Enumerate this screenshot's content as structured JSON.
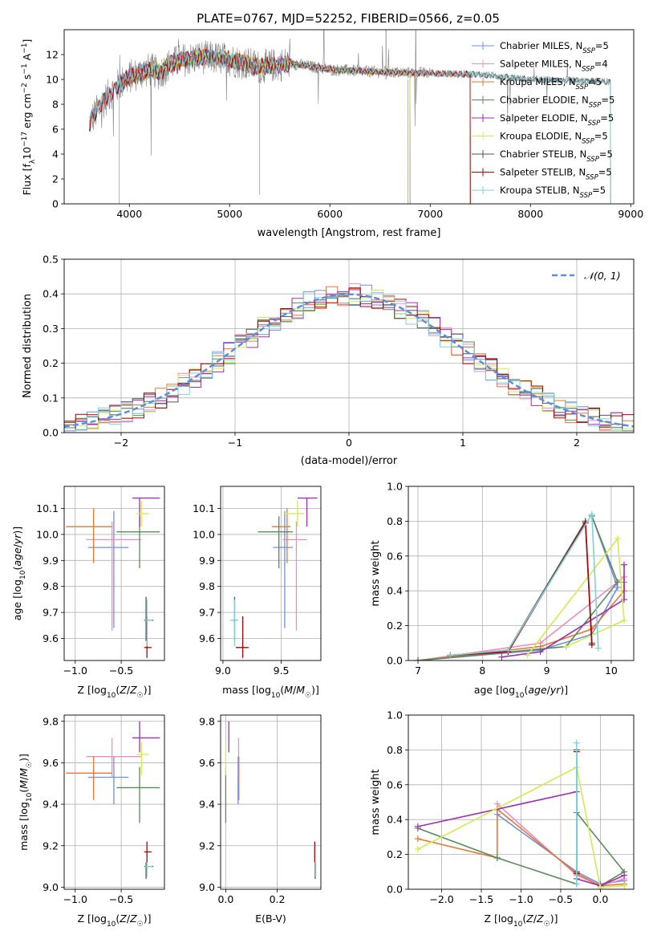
{
  "figure_title": "PLATE=0767, MJD=52252, FIBERID=0566, z=0.05",
  "colors": {
    "Chabrier MILES": "#6f8fdf",
    "Salpeter MILES": "#f08cc0",
    "Kroupa MILES": "#e07a30",
    "Chabrier ELODIE": "#5a8a5a",
    "Salpeter ELODIE": "#9b30b0",
    "Kroupa ELODIE": "#d0ec50",
    "Chabrier STELIB": "#555555",
    "Salpeter STELIB": "#b00000",
    "Kroupa STELIB": "#80d0d8",
    "data": "#808080",
    "normal": "#5b8fde"
  },
  "chart_data": [
    {
      "id": "spectrum",
      "type": "line",
      "title": "PLATE=0767, MJD=52252, FIBERID=0566, z=0.05",
      "xlabel": "wavelength [Angstrom, rest frame]",
      "ylabel": "Flux [f_λ10^-17 erg cm^-2 s^-1 A^-1]",
      "xlim": [
        3350,
        9030
      ],
      "ylim": [
        0,
        14
      ],
      "xticks": [
        4000,
        5000,
        6000,
        7000,
        8000,
        9000
      ],
      "yticks": [
        0,
        2,
        4,
        6,
        8,
        10,
        12
      ],
      "legend_position": "right",
      "legend": [
        {
          "name": "Chabrier MILES",
          "nssp": "5"
        },
        {
          "name": "Salpeter MILES",
          "nssp": "4"
        },
        {
          "name": "Kroupa MILES",
          "nssp": "5"
        },
        {
          "name": "Chabrier ELODIE",
          "nssp": "5"
        },
        {
          "name": "Salpeter ELODIE",
          "nssp": "5"
        },
        {
          "name": "Kroupa ELODIE",
          "nssp": "5"
        },
        {
          "name": "Chabrier STELIB",
          "nssp": "5"
        },
        {
          "name": "Salpeter STELIB",
          "nssp": "5"
        },
        {
          "name": "Kroupa STELIB",
          "nssp": "5"
        }
      ],
      "continuum": {
        "x": [
          3600,
          3700,
          3800,
          3900,
          4000,
          4100,
          4200,
          4300,
          4400,
          4500,
          4700,
          5000,
          5300,
          5600,
          6000,
          6500,
          7000,
          7500,
          8000,
          8500,
          8800
        ],
        "y": [
          6.5,
          7.8,
          8.8,
          9.6,
          10.2,
          10.5,
          10.8,
          10.5,
          11.2,
          11.5,
          11.8,
          11.6,
          11.0,
          11.3,
          10.8,
          10.6,
          10.5,
          10.4,
          10.0,
          9.9,
          9.8
        ]
      },
      "model_ranges": {
        "Chabrier MILES": [
          3600,
          7400
        ],
        "Salpeter MILES": [
          3600,
          7400
        ],
        "Kroupa MILES": [
          3600,
          7400
        ],
        "Chabrier ELODIE": [
          3900,
          6800
        ],
        "Salpeter ELODIE": [
          3900,
          6800
        ],
        "Kroupa ELODIE": [
          3900,
          6800
        ],
        "Chabrier STELIB": [
          3600,
          8800
        ],
        "Salpeter STELIB": [
          3600,
          7400
        ],
        "Kroupa STELIB": [
          3600,
          8800
        ]
      }
    },
    {
      "id": "residuals",
      "type": "histogram",
      "xlabel": "(data-model)/error",
      "ylabel": "Normed distribution",
      "xlim": [
        -2.5,
        2.5
      ],
      "ylim": [
        0,
        0.5
      ],
      "xticks": [
        -2,
        -1,
        0,
        1,
        2
      ],
      "yticks": [
        0.0,
        0.1,
        0.2,
        0.3,
        0.4,
        0.5
      ],
      "bin_width": 0.1,
      "legend_position": "top-right",
      "legend": [
        {
          "name": "𝒩(0,1)"
        }
      ]
    },
    {
      "id": "age-vs-Z",
      "type": "errorbar",
      "xlabel": "Z [log10(Z/Z☉)]",
      "ylabel": "age [log10(age/yr)]",
      "xlim": [
        -1.12,
        -0.03
      ],
      "ylim": [
        9.515,
        10.185
      ],
      "xticks": [
        -1.0,
        -0.5
      ],
      "yticks": [
        9.6,
        9.7,
        9.8,
        9.9,
        10.0,
        10.1
      ],
      "series": [
        {
          "name": "Chabrier MILES",
          "x": -0.58,
          "y": 9.95,
          "x_err": [
            0.28,
            0.16
          ],
          "y_err": [
            0.31,
            0.14
          ]
        },
        {
          "name": "Salpeter MILES",
          "x": -0.6,
          "y": 9.98,
          "x_err": [
            0.28,
            0.32
          ],
          "y_err": [
            0.35,
            0.07
          ]
        },
        {
          "name": "Kroupa MILES",
          "x": -0.8,
          "y": 10.03,
          "x_err": [
            0.3,
            0.2
          ],
          "y_err": [
            0.14,
            0.07
          ]
        },
        {
          "name": "Chabrier ELODIE",
          "x": -0.3,
          "y": 10.01,
          "x_err": [
            0.25,
            0.22
          ],
          "y_err": [
            0.14,
            0.06
          ]
        },
        {
          "name": "Salpeter ELODIE",
          "x": -0.3,
          "y": 10.14,
          "x_err": [
            0.08,
            0.22
          ],
          "y_err": [
            0.11,
            0.0
          ]
        },
        {
          "name": "Kroupa ELODIE",
          "x": -0.28,
          "y": 10.08,
          "x_err": [
            0.05,
            0.08
          ],
          "y_err": [
            0.05,
            0.05
          ]
        },
        {
          "name": "Chabrier STELIB",
          "x": -0.23,
          "y": 9.67,
          "x_err": [
            0.02,
            0.08
          ],
          "y_err": [
            0.08,
            0.09
          ]
        },
        {
          "name": "Salpeter STELIB",
          "x": -0.22,
          "y": 9.565,
          "x_err": [
            0.03,
            0.05
          ],
          "y_err": [
            0.04,
            0.12
          ]
        },
        {
          "name": "Kroupa STELIB",
          "x": -0.22,
          "y": 9.67,
          "x_err": [
            0.02,
            0.06
          ],
          "y_err": [
            0.1,
            0.08
          ]
        }
      ]
    },
    {
      "id": "age-vs-mass",
      "type": "errorbar",
      "xlabel": "mass [log10(M/M☉)]",
      "ylabel": "",
      "xlim": [
        8.98,
        9.84
      ],
      "ylim": [
        9.515,
        10.185
      ],
      "xticks": [
        9.0,
        9.5
      ],
      "yticks": [
        9.6,
        9.7,
        9.8,
        9.9,
        10.0,
        10.1
      ],
      "series": [
        {
          "name": "Chabrier MILES",
          "x": 9.53,
          "y": 9.95,
          "x_err": [
            0.1,
            0.07
          ],
          "y_err": [
            0.31,
            0.14
          ]
        },
        {
          "name": "Salpeter MILES",
          "x": 9.63,
          "y": 9.98,
          "x_err": [
            0.12,
            0.09
          ],
          "y_err": [
            0.35,
            0.07
          ]
        },
        {
          "name": "Kroupa MILES",
          "x": 9.55,
          "y": 10.03,
          "x_err": [
            0.13,
            0.03
          ],
          "y_err": [
            0.14,
            0.07
          ]
        },
        {
          "name": "Chabrier ELODIE",
          "x": 9.48,
          "y": 10.01,
          "x_err": [
            0.18,
            0.12
          ],
          "y_err": [
            0.14,
            0.06
          ]
        },
        {
          "name": "Salpeter ELODIE",
          "x": 9.72,
          "y": 10.14,
          "x_err": [
            0.08,
            0.09
          ],
          "y_err": [
            0.11,
            0.0
          ]
        },
        {
          "name": "Kroupa ELODIE",
          "x": 9.64,
          "y": 10.08,
          "x_err": [
            0.12,
            0.06
          ],
          "y_err": [
            0.05,
            0.05
          ]
        },
        {
          "name": "Chabrier STELIB",
          "x": 9.1,
          "y": 9.67,
          "x_err": [
            0.02,
            0.02
          ],
          "y_err": [
            0.08,
            0.09
          ]
        },
        {
          "name": "Salpeter STELIB",
          "x": 9.17,
          "y": 9.565,
          "x_err": [
            0.06,
            0.05
          ],
          "y_err": [
            0.04,
            0.12
          ]
        },
        {
          "name": "Kroupa STELIB",
          "x": 9.1,
          "y": 9.67,
          "x_err": [
            0.04,
            0.03
          ],
          "y_err": [
            0.1,
            0.08
          ]
        }
      ]
    },
    {
      "id": "mass-weight-vs-age",
      "type": "line",
      "xlabel": "age [log10(age/yr)]",
      "ylabel": "mass weight",
      "xlim": [
        6.85,
        10.35
      ],
      "ylim": [
        0,
        1.0
      ],
      "xticks": [
        7,
        8,
        9,
        10
      ],
      "yticks": [
        0.0,
        0.2,
        0.4,
        0.6,
        0.8,
        1.0
      ],
      "series": [
        {
          "name": "Chabrier MILES",
          "x": [
            7.0,
            8.9,
            9.7,
            10.1,
            9.7
          ],
          "y": [
            0.0,
            0.06,
            0.15,
            0.42,
            0.83
          ]
        },
        {
          "name": "Salpeter MILES",
          "x": [
            7.0,
            8.9,
            10.2,
            10.2
          ],
          "y": [
            0.0,
            0.1,
            0.48,
            0.4
          ]
        },
        {
          "name": "Kroupa MILES",
          "x": [
            7.0,
            8.9,
            9.7,
            10.2,
            10.2
          ],
          "y": [
            0.0,
            0.08,
            0.18,
            0.4,
            0.45
          ]
        },
        {
          "name": "Chabrier ELODIE",
          "x": [
            7.0,
            9.3,
            10.1,
            9.7
          ],
          "y": [
            0.0,
            0.08,
            0.45,
            0.83
          ]
        },
        {
          "name": "Salpeter ELODIE",
          "x": [
            8.3,
            8.9,
            10.2,
            10.2
          ],
          "y": [
            0.02,
            0.05,
            0.35,
            0.55
          ]
        },
        {
          "name": "Kroupa ELODIE",
          "x": [
            8.7,
            10.1,
            10.2,
            9.3
          ],
          "y": [
            0.03,
            0.7,
            0.23,
            0.08
          ]
        },
        {
          "name": "Chabrier STELIB",
          "x": [
            7.5,
            8.4,
            9.6,
            9.7
          ],
          "y": [
            0.03,
            0.06,
            0.8,
            0.1
          ]
        },
        {
          "name": "Salpeter STELIB",
          "x": [
            7.5,
            8.4,
            9.6,
            9.7
          ],
          "y": [
            0.03,
            0.05,
            0.79,
            0.09
          ]
        },
        {
          "name": "Kroupa STELIB",
          "x": [
            7.5,
            8.4,
            9.7,
            9.8
          ],
          "y": [
            0.03,
            0.06,
            0.84,
            0.07
          ]
        }
      ]
    },
    {
      "id": "mass-vs-Z",
      "type": "errorbar",
      "xlabel": "Z [log10(Z/Z☉)]",
      "ylabel": "mass [log10(M/M☉)]",
      "xlim": [
        -1.12,
        -0.03
      ],
      "ylim": [
        8.99,
        9.83
      ],
      "xticks": [
        -1.0,
        -0.5
      ],
      "yticks": [
        9.0,
        9.2,
        9.4,
        9.6,
        9.8
      ],
      "series": [
        {
          "name": "Chabrier MILES",
          "x": -0.58,
          "y": 9.53,
          "x_err": [
            0.28,
            0.16
          ],
          "y_err": [
            0.13,
            0.1
          ]
        },
        {
          "name": "Salpeter MILES",
          "x": -0.6,
          "y": 9.63,
          "x_err": [
            0.28,
            0.32
          ],
          "y_err": [
            0.1,
            0.09
          ]
        },
        {
          "name": "Kroupa MILES",
          "x": -0.8,
          "y": 9.55,
          "x_err": [
            0.3,
            0.2
          ],
          "y_err": [
            0.13,
            0.08
          ]
        },
        {
          "name": "Chabrier ELODIE",
          "x": -0.3,
          "y": 9.48,
          "x_err": [
            0.25,
            0.22
          ],
          "y_err": [
            0.17,
            0.1
          ]
        },
        {
          "name": "Salpeter ELODIE",
          "x": -0.3,
          "y": 9.72,
          "x_err": [
            0.08,
            0.22
          ],
          "y_err": [
            0.07,
            0.08
          ]
        },
        {
          "name": "Kroupa ELODIE",
          "x": -0.28,
          "y": 9.64,
          "x_err": [
            0.05,
            0.08
          ],
          "y_err": [
            0.1,
            0.06
          ]
        },
        {
          "name": "Chabrier STELIB",
          "x": -0.23,
          "y": 9.1,
          "x_err": [
            0.02,
            0.08
          ],
          "y_err": [
            0.06,
            0.02
          ]
        },
        {
          "name": "Salpeter STELIB",
          "x": -0.22,
          "y": 9.17,
          "x_err": [
            0.03,
            0.05
          ],
          "y_err": [
            0.05,
            0.05
          ]
        },
        {
          "name": "Kroupa STELIB",
          "x": -0.22,
          "y": 9.1,
          "x_err": [
            0.02,
            0.06
          ],
          "y_err": [
            0.05,
            0.02
          ]
        }
      ]
    },
    {
      "id": "mass-vs-EBV",
      "type": "errorbar",
      "xlabel": "E(B-V)",
      "ylabel": "",
      "xlim": [
        -0.02,
        0.37
      ],
      "ylim": [
        8.99,
        9.83
      ],
      "xticks": [
        0.0,
        0.2
      ],
      "yticks": [
        9.0,
        9.2,
        9.4,
        9.6,
        9.8
      ],
      "series": [
        {
          "name": "Chabrier MILES",
          "x": 0.048,
          "y": 9.53,
          "y_err": [
            0.13,
            0.1
          ]
        },
        {
          "name": "Salpeter MILES",
          "x": 0.05,
          "y": 9.63,
          "y_err": [
            0.1,
            0.09
          ]
        },
        {
          "name": "Kroupa MILES",
          "x": 0.051,
          "y": 9.55,
          "y_err": [
            0.13,
            0.08
          ]
        },
        {
          "name": "Chabrier ELODIE",
          "x": 0.0,
          "y": 9.48,
          "y_err": [
            0.17,
            0.1
          ]
        },
        {
          "name": "Salpeter ELODIE",
          "x": 0.012,
          "y": 9.72,
          "y_err": [
            0.07,
            0.08
          ]
        },
        {
          "name": "Kroupa ELODIE",
          "x": 0.0,
          "y": 9.64,
          "y_err": [
            0.1,
            0.06
          ]
        },
        {
          "name": "Chabrier STELIB",
          "x": 0.348,
          "y": 9.1,
          "y_err": [
            0.06,
            0.02
          ]
        },
        {
          "name": "Salpeter STELIB",
          "x": 0.346,
          "y": 9.17,
          "y_err": [
            0.05,
            0.05
          ]
        },
        {
          "name": "Kroupa STELIB",
          "x": 0.35,
          "y": 9.1,
          "y_err": [
            0.05,
            0.02
          ]
        }
      ]
    },
    {
      "id": "mass-weight-vs-Z",
      "type": "line",
      "xlabel": "Z [log10(Z/Z☉)]",
      "ylabel": "mass weight",
      "xlim": [
        -2.42,
        0.42
      ],
      "ylim": [
        0,
        1.0
      ],
      "xticks": [
        -2.0,
        -1.5,
        -1.0,
        -0.5,
        0.0
      ],
      "yticks": [
        0.0,
        0.2,
        0.4,
        0.6,
        0.8,
        1.0
      ],
      "series": [
        {
          "name": "Chabrier MILES",
          "x": [
            -1.3,
            -0.3,
            0.0,
            0.3
          ],
          "y": [
            0.43,
            0.1,
            0.03,
            0.05
          ]
        },
        {
          "name": "Salpeter MILES",
          "x": [
            -1.3,
            -0.3,
            0.0,
            0.3
          ],
          "y": [
            0.49,
            0.08,
            0.02,
            0.06
          ]
        },
        {
          "name": "Kroupa MILES",
          "x": [
            -2.3,
            -1.3,
            -1.3,
            -0.3,
            0.0,
            0.3
          ],
          "y": [
            0.29,
            0.18,
            0.46,
            0.09,
            0.02,
            0.03
          ]
        },
        {
          "name": "Chabrier ELODIE",
          "x": [
            -2.3,
            -1.3,
            -0.3,
            -0.3,
            0.3,
            0.0
          ],
          "y": [
            0.35,
            0.18,
            0.03,
            0.44,
            0.1,
            0.02
          ]
        },
        {
          "name": "Salpeter ELODIE",
          "x": [
            -2.3,
            -0.3,
            -0.3,
            0.0,
            0.3
          ],
          "y": [
            0.36,
            0.56,
            0.06,
            0.02,
            0.08
          ]
        },
        {
          "name": "Kroupa ELODIE",
          "x": [
            -2.3,
            -0.3,
            0.0,
            0.3
          ],
          "y": [
            0.23,
            0.7,
            0.01,
            0.02
          ]
        },
        {
          "name": "Chabrier STELIB",
          "x": [
            -0.3,
            -0.3
          ],
          "y": [
            0.8,
            0.1
          ]
        },
        {
          "name": "Salpeter STELIB",
          "x": [
            -0.3,
            -0.3
          ],
          "y": [
            0.79,
            0.09
          ]
        },
        {
          "name": "Kroupa STELIB",
          "x": [
            -0.3,
            -0.3
          ],
          "y": [
            0.84,
            0.03
          ]
        }
      ]
    }
  ]
}
